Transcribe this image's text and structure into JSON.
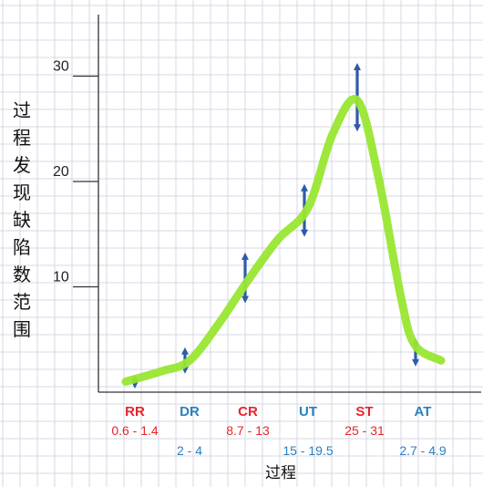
{
  "chart_data": {
    "type": "line",
    "xlabel": "过程",
    "ylabel": "过程发现缺陷数范围",
    "ylim": [
      0,
      36
    ],
    "yticks": [
      "10",
      "20",
      "30"
    ],
    "grid": true,
    "categories": [
      "RR",
      "DR",
      "CR",
      "UT",
      "ST",
      "AT"
    ],
    "category_colors": [
      "#e8232a",
      "#2a7fc1",
      "#e8232a",
      "#2a7fc1",
      "#e8232a",
      "#2a7fc1"
    ],
    "ranges": [
      {
        "label": "0.6 - 1.4",
        "low": 0.6,
        "high": 1.4
      },
      {
        "label": "2 - 4",
        "low": 2,
        "high": 4
      },
      {
        "label": "8.7 - 13",
        "low": 8.7,
        "high": 13
      },
      {
        "label": "15 - 19.5",
        "low": 15,
        "high": 19.5
      },
      {
        "label": "25 - 31",
        "low": 25,
        "high": 31
      },
      {
        "label": "2.7 - 4.9",
        "low": 2.7,
        "high": 4.9
      }
    ],
    "curve_values": [
      1.0,
      3.0,
      10.6,
      17.5,
      27.7,
      3.0
    ],
    "colors": {
      "curve": "#99e632",
      "arrow": "#2e5ba7",
      "grid": "#d7d7e6",
      "axis": "#333333"
    }
  }
}
